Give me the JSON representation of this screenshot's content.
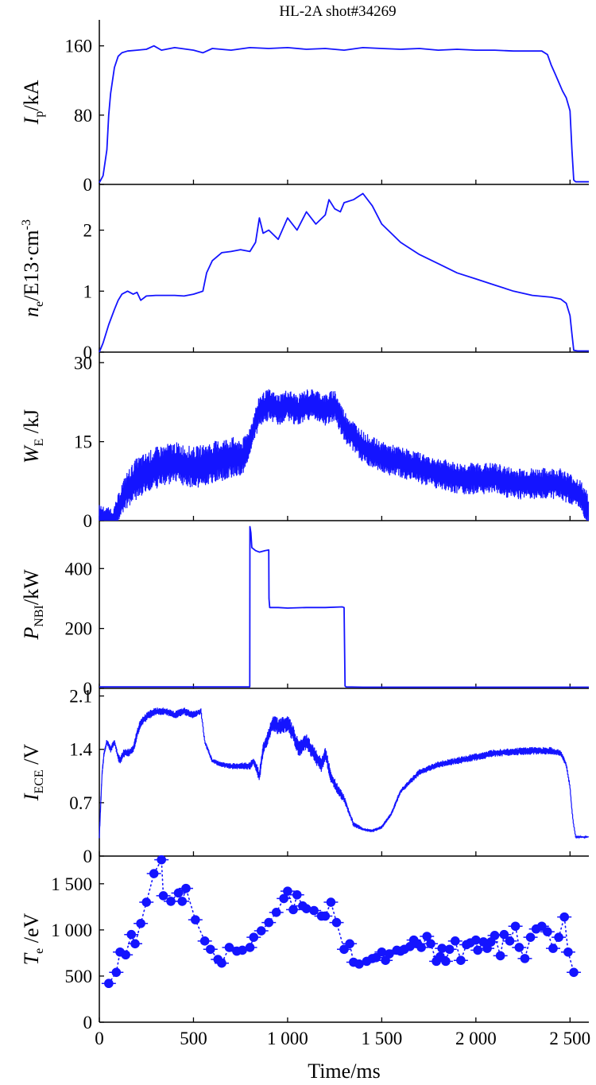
{
  "chart_data": {
    "type": "line",
    "title": "HL-2A shot#34269",
    "xlabel": "Time/ms",
    "xlim": [
      0,
      2600
    ],
    "x_ticks": [
      0,
      500,
      1000,
      1500,
      2000,
      2500
    ],
    "x_tick_labels": [
      "0",
      "500",
      "1 000",
      "1 500",
      "2 000",
      "2 500"
    ],
    "line_color": "#1414ff",
    "panels": [
      {
        "id": "ip",
        "ylabel": {
          "main": "I",
          "sub": "p",
          "unit": "/kA"
        },
        "ylim": [
          0,
          190
        ],
        "y_ticks": [
          0,
          80,
          160
        ],
        "y_tick_labels": [
          "0",
          "80",
          "160"
        ],
        "series": [
          {
            "style": "line",
            "x": [
              0,
              20,
              40,
              50,
              60,
              70,
              80,
              100,
              120,
              150,
              200,
              250,
              290,
              330,
              400,
              500,
              550,
              600,
              700,
              800,
              900,
              1000,
              1100,
              1200,
              1300,
              1400,
              1500,
              1600,
              1700,
              1800,
              1900,
              2000,
              2100,
              2200,
              2300,
              2350,
              2380,
              2400,
              2420,
              2440,
              2460,
              2480,
              2500,
              2510,
              2520,
              2530,
              2600
            ],
            "y": [
              2,
              10,
              40,
              80,
              105,
              120,
              135,
              148,
              152,
              154,
              155,
              156,
              160,
              155,
              158,
              155,
              152,
              157,
              155,
              158,
              157,
              158,
              156,
              157,
              155,
              158,
              157,
              156,
              157,
              155,
              156,
              155,
              155,
              154,
              154,
              154,
              150,
              138,
              128,
              118,
              108,
              100,
              85,
              40,
              5,
              3,
              3
            ]
          }
        ]
      },
      {
        "id": "ne",
        "ylabel": {
          "main": "n",
          "sub": "e",
          "unit": "/E13·cm",
          "sup": "-3"
        },
        "ylim": [
          0,
          2.75
        ],
        "y_ticks": [
          0,
          1,
          2
        ],
        "y_tick_labels": [
          "0",
          "1",
          "2"
        ],
        "series": [
          {
            "style": "line",
            "x": [
              0,
              20,
              50,
              80,
              100,
              120,
              150,
              180,
              200,
              220,
              250,
              300,
              350,
              400,
              450,
              500,
              550,
              570,
              600,
              650,
              700,
              750,
              800,
              830,
              850,
              870,
              900,
              950,
              1000,
              1050,
              1100,
              1150,
              1200,
              1220,
              1250,
              1280,
              1300,
              1350,
              1400,
              1450,
              1500,
              1600,
              1700,
              1800,
              1900,
              2000,
              2100,
              2200,
              2300,
              2400,
              2450,
              2480,
              2500,
              2510,
              2520,
              2540,
              2600
            ],
            "y": [
              0,
              0.15,
              0.45,
              0.7,
              0.85,
              0.95,
              1.0,
              0.95,
              0.98,
              0.85,
              0.92,
              0.93,
              0.93,
              0.93,
              0.92,
              0.95,
              1.0,
              1.3,
              1.5,
              1.63,
              1.65,
              1.68,
              1.65,
              1.8,
              2.2,
              1.95,
              2.0,
              1.85,
              2.2,
              2.0,
              2.3,
              2.1,
              2.25,
              2.5,
              2.35,
              2.3,
              2.45,
              2.5,
              2.6,
              2.4,
              2.1,
              1.8,
              1.6,
              1.45,
              1.3,
              1.2,
              1.1,
              1.0,
              0.93,
              0.9,
              0.87,
              0.8,
              0.6,
              0.3,
              0.03,
              0.02,
              0.02
            ]
          }
        ]
      },
      {
        "id": "we",
        "ylabel": {
          "main": "W",
          "sub": "E",
          "unit": " /kJ"
        },
        "ylim": [
          0,
          32
        ],
        "y_ticks": [
          0,
          15,
          30
        ],
        "y_tick_labels": [
          "0",
          "15",
          "30"
        ],
        "series": [
          {
            "style": "line",
            "name": "mean",
            "x": [
              0,
              50,
              80,
              100,
              120,
              150,
              200,
              250,
              300,
              400,
              500,
              600,
              700,
              760,
              800,
              850,
              900,
              950,
              1000,
              1050,
              1100,
              1150,
              1200,
              1250,
              1300,
              1350,
              1400,
              1450,
              1500,
              1600,
              1700,
              1800,
              1900,
              2000,
              2100,
              2200,
              2300,
              2400,
              2450,
              2500,
              2550,
              2600
            ],
            "y": [
              1,
              0,
              0,
              2,
              4,
              6,
              8,
              9,
              10,
              11,
              10,
              11,
              12,
              12,
              15,
              21,
              22,
              21,
              22,
              21,
              22,
              22,
              21,
              22,
              18,
              16,
              14,
              13,
              12,
              11,
              10,
              9,
              8,
              8,
              8,
              7,
              7,
              7,
              7,
              6,
              5,
              2
            ]
          },
          {
            "style": "band",
            "name": "fluctuation",
            "x": [
              0,
              100,
              200,
              300,
              400,
              500,
              600,
              700,
              800,
              850,
              900,
              1000,
              1100,
              1200,
              1300,
              1400,
              1500,
              1600,
              1800,
              2000,
              2200,
              2400,
              2600
            ],
            "amp": [
              2,
              3,
              4,
              4,
              4,
              4,
              4,
              4,
              3,
              3,
              3,
              3,
              3,
              3,
              3,
              3,
              3,
              3,
              3,
              3,
              3,
              3,
              3
            ]
          }
        ]
      },
      {
        "id": "pnbi",
        "ylabel": {
          "main": "P",
          "sub": "NBI",
          "unit": "/kW"
        },
        "ylim": [
          0,
          560
        ],
        "y_ticks": [
          0,
          200,
          400
        ],
        "y_tick_labels": [
          "0",
          "200",
          "400"
        ],
        "series": [
          {
            "style": "line",
            "x": [
              0,
              799,
              800,
              805,
              810,
              830,
              850,
              880,
              900,
              901,
              905,
              950,
              1000,
              1100,
              1200,
              1290,
              1300,
              1305,
              1310,
              1400,
              2600
            ],
            "y": [
              5,
              5,
              540,
              520,
              470,
              460,
              455,
              460,
              462,
              300,
              270,
              270,
              268,
              270,
              270,
              272,
              270,
              8,
              5,
              4,
              4
            ]
          }
        ]
      },
      {
        "id": "iece",
        "ylabel": {
          "main": "I",
          "sub": "ECE",
          "unit": " /V"
        },
        "ylim": [
          0,
          2.2
        ],
        "y_ticks": [
          0,
          0.7,
          1.4,
          2.1
        ],
        "y_tick_labels": [
          "0",
          "0.7",
          "1.4",
          "2.1"
        ],
        "series": [
          {
            "style": "line",
            "name": "mean",
            "x": [
              0,
              15,
              25,
              40,
              60,
              80,
              100,
              110,
              130,
              150,
              180,
              200,
              220,
              260,
              300,
              350,
              400,
              450,
              500,
              540,
              560,
              600,
              650,
              700,
              800,
              820,
              850,
              870,
              900,
              920,
              950,
              1000,
              1030,
              1060,
              1100,
              1150,
              1180,
              1200,
              1230,
              1260,
              1300,
              1330,
              1350,
              1400,
              1450,
              1500,
              1550,
              1600,
              1700,
              1800,
              1900,
              2000,
              2100,
              2200,
              2300,
              2400,
              2450,
              2480,
              2500,
              2510,
              2520,
              2530,
              2600
            ],
            "y": [
              0.25,
              1.1,
              1.35,
              1.5,
              1.4,
              1.5,
              1.3,
              1.25,
              1.35,
              1.35,
              1.4,
              1.6,
              1.75,
              1.85,
              1.9,
              1.9,
              1.85,
              1.9,
              1.85,
              1.9,
              1.5,
              1.25,
              1.2,
              1.18,
              1.18,
              1.25,
              1.05,
              1.4,
              1.6,
              1.75,
              1.7,
              1.75,
              1.6,
              1.4,
              1.5,
              1.3,
              1.2,
              1.35,
              1.05,
              0.9,
              0.75,
              0.55,
              0.42,
              0.35,
              0.33,
              0.38,
              0.55,
              0.85,
              1.1,
              1.2,
              1.25,
              1.3,
              1.35,
              1.37,
              1.38,
              1.38,
              1.35,
              1.2,
              0.9,
              0.6,
              0.4,
              0.25,
              0.25
            ]
          },
          {
            "style": "band",
            "name": "fluctuation",
            "x": [
              0,
              100,
              200,
              300,
              500,
              560,
              600,
              800,
              900,
              1000,
              1100,
              1200,
              1300,
              1400,
              1500,
              1600,
              1700,
              2000,
              2400,
              2500,
              2600
            ],
            "amp": [
              0.03,
              0.05,
              0.06,
              0.05,
              0.05,
              0.03,
              0.03,
              0.05,
              0.1,
              0.12,
              0.1,
              0.1,
              0.05,
              0.02,
              0.02,
              0.03,
              0.04,
              0.05,
              0.05,
              0.03,
              0
            ]
          }
        ]
      },
      {
        "id": "te",
        "ylabel": {
          "main": "T",
          "sub": "e",
          "unit": " /eV"
        },
        "ylim": [
          0,
          1800
        ],
        "y_ticks": [
          0,
          500,
          1000,
          1500
        ],
        "y_tick_labels": [
          "0",
          "500",
          "1 000",
          "1 500"
        ],
        "series": [
          {
            "style": "points-dotted",
            "x": [
              50,
              90,
              110,
              140,
              170,
              190,
              220,
              250,
              290,
              330,
              340,
              380,
              420,
              440,
              460,
              510,
              560,
              590,
              630,
              650,
              690,
              730,
              760,
              800,
              820,
              860,
              900,
              940,
              980,
              1000,
              1030,
              1050,
              1080,
              1100,
              1140,
              1180,
              1200,
              1230,
              1260,
              1300,
              1330,
              1350,
              1380,
              1420,
              1450,
              1470,
              1500,
              1520,
              1540,
              1580,
              1600,
              1620,
              1650,
              1670,
              1690,
              1710,
              1740,
              1760,
              1790,
              1810,
              1820,
              1840,
              1860,
              1890,
              1920,
              1950,
              1970,
              2000,
              2010,
              2040,
              2060,
              2080,
              2100,
              2130,
              2150,
              2180,
              2210,
              2230,
              2260,
              2290,
              2320,
              2350,
              2380,
              2410,
              2440,
              2470,
              2490,
              2520
            ],
            "y": [
              420,
              540,
              760,
              730,
              950,
              850,
              1070,
              1300,
              1610,
              1760,
              1370,
              1310,
              1400,
              1310,
              1450,
              1110,
              880,
              790,
              680,
              640,
              810,
              770,
              780,
              810,
              920,
              990,
              1080,
              1190,
              1340,
              1420,
              1220,
              1380,
              1260,
              1230,
              1210,
              1150,
              1150,
              1300,
              1080,
              790,
              850,
              650,
              630,
              660,
              690,
              700,
              760,
              670,
              740,
              780,
              770,
              790,
              820,
              890,
              850,
              810,
              930,
              850,
              660,
              710,
              800,
              660,
              790,
              880,
              670,
              840,
              860,
              890,
              780,
              870,
              800,
              870,
              940,
              720,
              950,
              880,
              1040,
              810,
              690,
              920,
              1010,
              1040,
              980,
              800,
              920,
              1140,
              760,
              540
            ]
          }
        ]
      }
    ]
  }
}
